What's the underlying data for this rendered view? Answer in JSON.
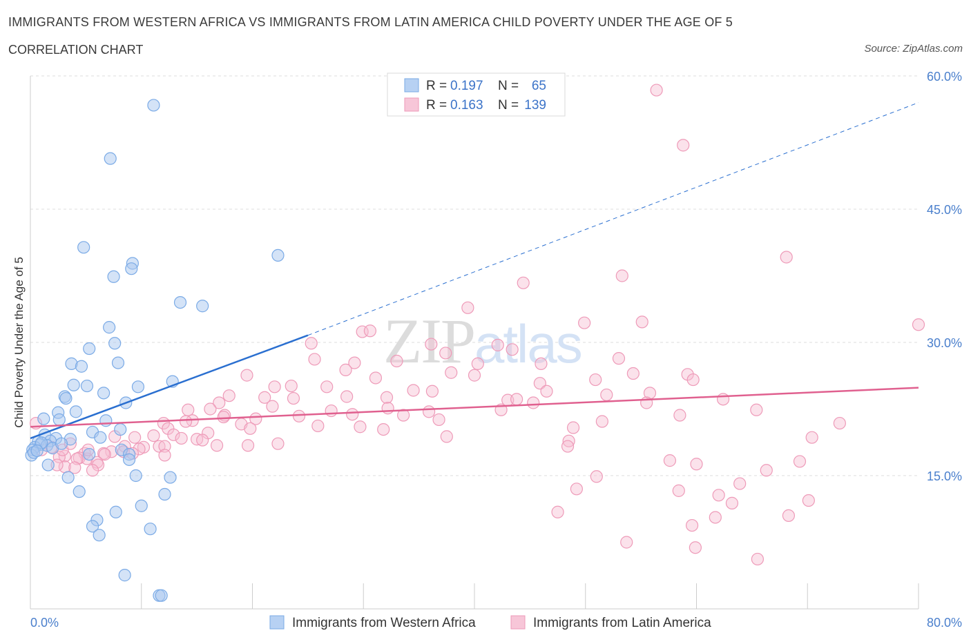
{
  "title": "IMMIGRANTS FROM WESTERN AFRICA VS IMMIGRANTS FROM LATIN AMERICA CHILD POVERTY UNDER THE AGE OF 5",
  "subtitle": "CORRELATION CHART",
  "source": "Source: ZipAtlas.com",
  "watermark": "ZIPatlas",
  "legend": {
    "rows": [
      {
        "r_label": "R =",
        "r_value": "0.197",
        "n_label": "N =",
        "n_value": "65"
      },
      {
        "r_label": "R =",
        "r_value": "0.163",
        "n_label": "N =",
        "n_value": "139"
      }
    ]
  },
  "bottom_legend": [
    "Immigrants from Western Africa",
    "Immigrants from Latin America"
  ],
  "colors": {
    "blue_fill": "#a9c8f0",
    "blue_stroke": "#7aaae6",
    "blue_line": "#2a6fd0",
    "pink_fill": "#f6bfd2",
    "pink_stroke": "#ee9ab8",
    "pink_line": "#e0608f",
    "grid": "#dddddd",
    "axis_text": "#4a7fcc"
  },
  "chart_data": {
    "type": "scatter",
    "title": "IMMIGRANTS FROM WESTERN AFRICA VS IMMIGRANTS FROM LATIN AMERICA CHILD POVERTY UNDER THE AGE OF 5",
    "xlabel": "",
    "ylabel": "Child Poverty Under the Age of 5",
    "xlim": [
      0,
      80
    ],
    "ylim": [
      0,
      60
    ],
    "x_tick_labels": [
      "0.0%",
      "80.0%"
    ],
    "y_ticks": [
      15,
      30,
      45,
      60
    ],
    "y_tick_labels": [
      "15.0%",
      "30.0%",
      "45.0%",
      "60.0%"
    ],
    "grid": true,
    "legend_position": "top-center",
    "series": [
      {
        "name": "Immigrants from Western Africa",
        "R": 0.197,
        "N": 65,
        "trend": {
          "x0": 0,
          "y0": 19.2,
          "x1": 25,
          "y1": 30.8,
          "dashed_to_x": 80,
          "dashed_to_y": 57.0
        },
        "points": [
          [
            11.1,
            56.7
          ],
          [
            7.2,
            50.7
          ],
          [
            4.8,
            40.7
          ],
          [
            22.3,
            39.8
          ],
          [
            9.2,
            38.9
          ],
          [
            9.1,
            38.3
          ],
          [
            7.5,
            37.4
          ],
          [
            13.5,
            34.5
          ],
          [
            15.5,
            34.1
          ],
          [
            7.1,
            31.7
          ],
          [
            7.6,
            29.9
          ],
          [
            5.3,
            29.3
          ],
          [
            3.7,
            27.6
          ],
          [
            4.6,
            27.3
          ],
          [
            7.9,
            27.7
          ],
          [
            3.9,
            25.2
          ],
          [
            5.1,
            25.1
          ],
          [
            9.7,
            25.0
          ],
          [
            12.8,
            25.6
          ],
          [
            6.6,
            24.3
          ],
          [
            3.1,
            23.9
          ],
          [
            3.2,
            23.7
          ],
          [
            8.6,
            23.2
          ],
          [
            4.1,
            22.2
          ],
          [
            2.5,
            22.1
          ],
          [
            1.2,
            21.4
          ],
          [
            2.6,
            21.3
          ],
          [
            6.8,
            21.2
          ],
          [
            8.1,
            20.2
          ],
          [
            5.6,
            19.9
          ],
          [
            1.3,
            19.6
          ],
          [
            2.3,
            19.2
          ],
          [
            3.6,
            19.1
          ],
          [
            6.3,
            19.3
          ],
          [
            0.7,
            18.8
          ],
          [
            1.8,
            18.9
          ],
          [
            0.9,
            18.5
          ],
          [
            1.5,
            18.4
          ],
          [
            0.4,
            18.2
          ],
          [
            2.0,
            18.1
          ],
          [
            0.2,
            17.9
          ],
          [
            8.2,
            17.9
          ],
          [
            0.1,
            17.3
          ],
          [
            5.3,
            17.4
          ],
          [
            8.9,
            17.4
          ],
          [
            1.6,
            16.2
          ],
          [
            8.9,
            16.8
          ],
          [
            3.4,
            14.8
          ],
          [
            9.5,
            15.0
          ],
          [
            12.6,
            14.8
          ],
          [
            4.4,
            13.2
          ],
          [
            12.1,
            12.9
          ],
          [
            10.0,
            11.6
          ],
          [
            6.0,
            10.0
          ],
          [
            7.7,
            10.9
          ],
          [
            5.6,
            9.3
          ],
          [
            10.8,
            9.0
          ],
          [
            6.2,
            8.3
          ],
          [
            8.5,
            3.8
          ],
          [
            11.6,
            1.5
          ],
          [
            11.8,
            1.5
          ],
          [
            0.3,
            17.6
          ],
          [
            1.0,
            18.7
          ],
          [
            2.8,
            18.6
          ],
          [
            0.6,
            17.8
          ]
        ]
      },
      {
        "name": "Immigrants from Latin America",
        "R": 0.163,
        "N": 139,
        "trend": {
          "x0": 0,
          "y0": 20.5,
          "x1": 80,
          "y1": 24.9
        },
        "points": [
          [
            56.4,
            58.4
          ],
          [
            58.8,
            52.2
          ],
          [
            68.1,
            39.6
          ],
          [
            53.3,
            37.5
          ],
          [
            44.4,
            36.7
          ],
          [
            39.4,
            33.9
          ],
          [
            49.9,
            32.2
          ],
          [
            55.1,
            32.3
          ],
          [
            80.0,
            32.0
          ],
          [
            29.9,
            31.2
          ],
          [
            30.6,
            31.3
          ],
          [
            25.3,
            29.9
          ],
          [
            36.1,
            29.8
          ],
          [
            42.1,
            29.7
          ],
          [
            43.4,
            29.2
          ],
          [
            37.4,
            28.8
          ],
          [
            25.6,
            28.1
          ],
          [
            33.0,
            27.9
          ],
          [
            40.3,
            27.6
          ],
          [
            46.0,
            27.6
          ],
          [
            53.0,
            28.2
          ],
          [
            29.2,
            27.7
          ],
          [
            28.4,
            26.9
          ],
          [
            37.9,
            26.6
          ],
          [
            40.0,
            26.3
          ],
          [
            54.3,
            26.5
          ],
          [
            59.2,
            26.4
          ],
          [
            19.5,
            26.3
          ],
          [
            31.1,
            26.0
          ],
          [
            50.9,
            25.8
          ],
          [
            59.7,
            25.8
          ],
          [
            45.9,
            25.4
          ],
          [
            23.5,
            25.1
          ],
          [
            26.7,
            25.0
          ],
          [
            22.0,
            25.0
          ],
          [
            34.5,
            24.6
          ],
          [
            36.2,
            24.5
          ],
          [
            46.5,
            24.5
          ],
          [
            51.9,
            24.1
          ],
          [
            55.8,
            24.3
          ],
          [
            28.5,
            23.9
          ],
          [
            17.9,
            24.0
          ],
          [
            21.1,
            23.8
          ],
          [
            23.7,
            23.7
          ],
          [
            32.1,
            23.8
          ],
          [
            43.0,
            23.5
          ],
          [
            43.8,
            23.6
          ],
          [
            45.3,
            23.2
          ],
          [
            62.4,
            23.6
          ],
          [
            17.0,
            23.2
          ],
          [
            21.8,
            22.8
          ],
          [
            32.2,
            22.6
          ],
          [
            55.5,
            23.2
          ],
          [
            16.2,
            22.5
          ],
          [
            14.2,
            22.4
          ],
          [
            27.1,
            22.3
          ],
          [
            35.9,
            22.2
          ],
          [
            42.4,
            22.4
          ],
          [
            65.4,
            22.4
          ],
          [
            29.0,
            21.9
          ],
          [
            33.6,
            21.8
          ],
          [
            17.5,
            21.8
          ],
          [
            17.4,
            21.6
          ],
          [
            20.3,
            21.4
          ],
          [
            14.6,
            21.2
          ],
          [
            24.2,
            21.7
          ],
          [
            36.8,
            21.3
          ],
          [
            58.5,
            21.8
          ],
          [
            14.0,
            21.1
          ],
          [
            19.0,
            20.8
          ],
          [
            25.9,
            20.6
          ],
          [
            51.5,
            21.1
          ],
          [
            72.9,
            20.9
          ],
          [
            12.0,
            20.9
          ],
          [
            12.4,
            20.3
          ],
          [
            19.8,
            20.3
          ],
          [
            29.7,
            20.5
          ],
          [
            31.8,
            20.2
          ],
          [
            48.9,
            20.4
          ],
          [
            16.0,
            19.8
          ],
          [
            12.9,
            19.6
          ],
          [
            37.5,
            19.4
          ],
          [
            48.5,
            18.9
          ],
          [
            13.6,
            19.2
          ],
          [
            15.0,
            19.1
          ],
          [
            15.5,
            19.0
          ],
          [
            11.1,
            19.5
          ],
          [
            7.6,
            19.4
          ],
          [
            9.4,
            19.3
          ],
          [
            70.4,
            19.3
          ],
          [
            22.3,
            18.6
          ],
          [
            8.5,
            18.3
          ],
          [
            10.2,
            18.2
          ],
          [
            11.6,
            18.3
          ],
          [
            12.1,
            18.3
          ],
          [
            16.8,
            18.4
          ],
          [
            19.6,
            18.4
          ],
          [
            48.4,
            18.3
          ],
          [
            9.8,
            18.0
          ],
          [
            7.3,
            17.7
          ],
          [
            8.4,
            17.7
          ],
          [
            9.2,
            17.5
          ],
          [
            12.1,
            17.3
          ],
          [
            4.9,
            17.5
          ],
          [
            6.6,
            17.5
          ],
          [
            6.7,
            17.4
          ],
          [
            3.1,
            17.2
          ],
          [
            4.4,
            17.0
          ],
          [
            5.1,
            16.9
          ],
          [
            4.2,
            16.9
          ],
          [
            2.6,
            17.1
          ],
          [
            6.0,
            16.5
          ],
          [
            6.1,
            16.2
          ],
          [
            3.1,
            16.0
          ],
          [
            2.4,
            16.2
          ],
          [
            4.0,
            15.9
          ],
          [
            5.6,
            15.6
          ],
          [
            57.6,
            16.7
          ],
          [
            60.0,
            16.3
          ],
          [
            69.3,
            16.6
          ],
          [
            66.3,
            15.6
          ],
          [
            51.0,
            14.9
          ],
          [
            49.2,
            13.5
          ],
          [
            58.4,
            13.3
          ],
          [
            62.0,
            12.8
          ],
          [
            63.2,
            11.9
          ],
          [
            70.1,
            12.2
          ],
          [
            68.3,
            10.5
          ],
          [
            47.5,
            10.9
          ],
          [
            61.7,
            10.3
          ],
          [
            59.6,
            9.4
          ],
          [
            53.7,
            7.5
          ],
          [
            59.9,
            6.9
          ],
          [
            65.5,
            5.6
          ],
          [
            1.0,
            17.9
          ],
          [
            0.5,
            20.9
          ],
          [
            1.9,
            18.2
          ],
          [
            2.9,
            17.9
          ],
          [
            3.6,
            18.6
          ],
          [
            5.2,
            17.9
          ],
          [
            63.9,
            14.1
          ]
        ]
      }
    ]
  }
}
